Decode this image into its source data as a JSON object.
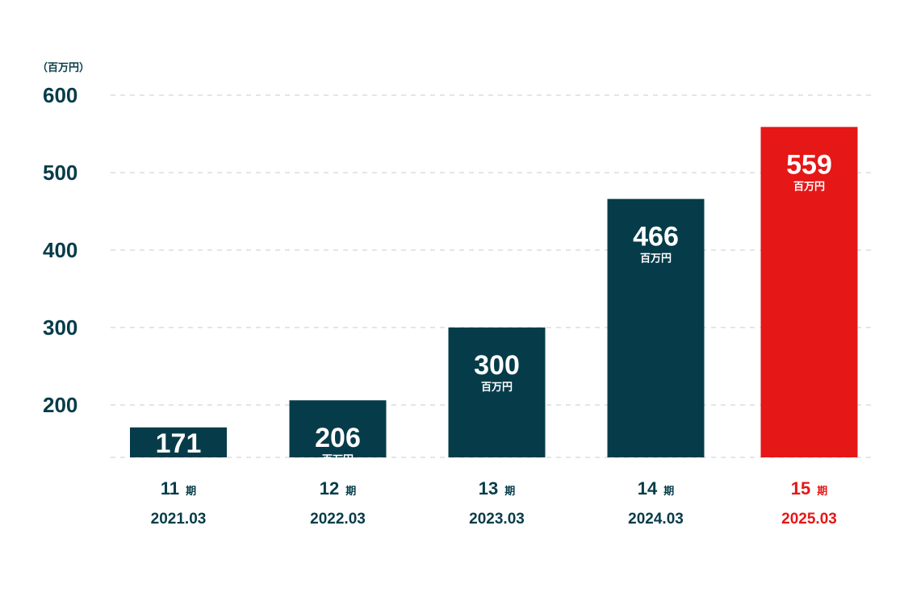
{
  "colors": {
    "primary": "#063c49",
    "highlight": "#e51717",
    "grid": "#d9dee0",
    "label_on_bar": "#ffffff"
  },
  "chart_data": {
    "type": "bar",
    "unit_label": "（百万円）",
    "value_unit": "百万円",
    "period_suffix": "期",
    "y_ticks": [
      200,
      300,
      400,
      500,
      600
    ],
    "ylim": [
      133,
      600
    ],
    "grid": true,
    "categories": [
      {
        "period": "11",
        "date": "2021.03"
      },
      {
        "period": "12",
        "date": "2022.03"
      },
      {
        "period": "13",
        "date": "2023.03"
      },
      {
        "period": "14",
        "date": "2024.03"
      },
      {
        "period": "15",
        "date": "2025.03"
      }
    ],
    "values": [
      171,
      206,
      300,
      466,
      559
    ],
    "highlight_index": 4
  }
}
